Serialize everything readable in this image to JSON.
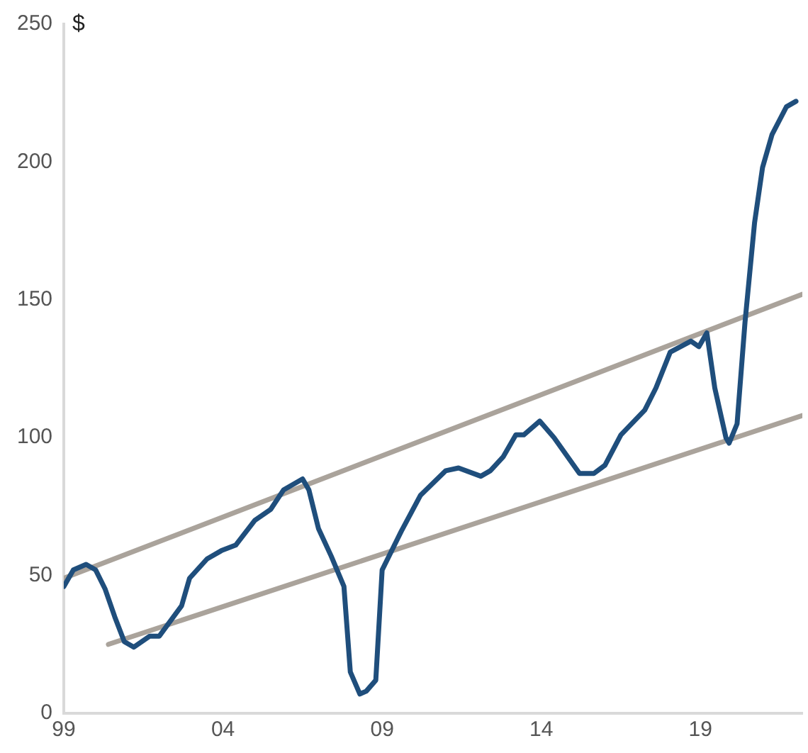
{
  "chart_data": {
    "type": "line",
    "ylabel": "$",
    "xlim": [
      1999,
      2022.2
    ],
    "xticks": [
      {
        "value": 1999,
        "label": "99"
      },
      {
        "value": 2004,
        "label": "04"
      },
      {
        "value": 2009,
        "label": "09"
      },
      {
        "value": 2014,
        "label": "14"
      },
      {
        "value": 2019,
        "label": "19"
      }
    ],
    "ylim": [
      0,
      250
    ],
    "yticks": [
      0,
      50,
      100,
      150,
      200,
      250
    ],
    "grid": false,
    "legend": false,
    "marker": "none",
    "line_style": "solid",
    "series": [
      {
        "color": "#1f4e7c",
        "x": [
          1999.0,
          1999.3,
          1999.7,
          2000.0,
          2000.3,
          2000.6,
          2000.9,
          2001.2,
          2001.7,
          2002.0,
          2002.7,
          2002.95,
          2003.5,
          2003.95,
          2004.4,
          2005.0,
          2005.5,
          2005.9,
          2006.5,
          2006.7,
          2007.0,
          2007.4,
          2007.8,
          2008.0,
          2008.3,
          2008.5,
          2008.8,
          2009.0,
          2009.6,
          2010.2,
          2011.0,
          2011.4,
          2012.1,
          2012.4,
          2012.8,
          2013.2,
          2013.45,
          2013.95,
          2014.4,
          2015.2,
          2015.65,
          2016.0,
          2016.5,
          2017.25,
          2017.6,
          2018.05,
          2018.7,
          2018.95,
          2019.2,
          2019.45,
          2019.8,
          2019.9,
          2020.15,
          2020.4,
          2020.7,
          2020.95,
          2021.25,
          2021.7,
          2022.0
        ],
        "values": [
          46,
          52,
          54,
          52,
          45,
          35,
          26,
          24,
          28,
          28,
          39,
          49,
          56,
          59,
          61,
          70,
          74,
          81,
          85,
          81,
          67,
          57,
          46,
          15,
          7,
          8,
          12,
          52,
          66,
          79,
          88,
          89,
          86,
          88,
          93,
          101,
          101,
          106,
          100,
          87,
          87,
          90,
          101,
          110,
          118,
          131,
          135,
          133,
          138,
          118,
          100,
          98,
          105,
          142,
          178,
          198,
          210,
          220,
          222
        ]
      },
      {
        "color": "#aaa39b",
        "x": [
          1999.0,
          2022.2
        ],
        "values": [
          49,
          152
        ]
      },
      {
        "color": "#aaa39b",
        "x": [
          2000.4,
          2022.2
        ],
        "values": [
          25,
          108
        ]
      }
    ]
  }
}
